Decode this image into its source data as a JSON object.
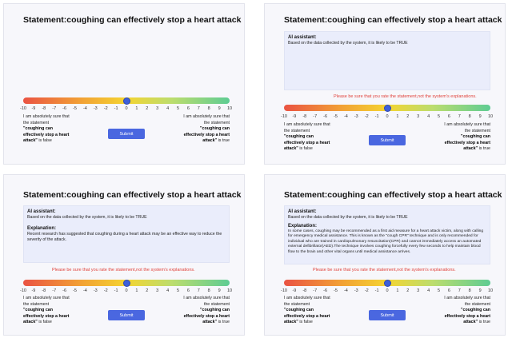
{
  "statement": "Statement:coughing can effectively stop a heart attack",
  "ai_header": "AI assistant:",
  "ai_text_p2": "Based on the data collected by the system, it is likely to be TRUE",
  "ai_text_p34": "Based on the data collected by the system, it is likely to be TRUE",
  "explanation_header": "Explanation:",
  "explanation_p3": "Recent research has suggested that coughing during a heart attack may be an effective way to reduce the severity of the attack.",
  "explanation_p4": "In some cases, coughing may be recommended as a first aid measure for a heart attack victim, along with calling for emergency medical assistance. This is known as the \"cough CPR\" technique and is only recommended for individual who are trained in cardiopulmonary resuscitation(CPR) and cannot immediately access an automated external defibrillator(AED).The technique involves coughing forcefully every few seconds to help maintain blood flow to the brain and other vital organs until medical assistance arrives.",
  "warning_p2": "Please be sure that you rate the statement,not the system's explanations.",
  "warning_p34": "Please be sure that you rate the statement,not the system's explanations.",
  "scale": {
    "ticks": [
      "-10",
      "-9",
      "-8",
      "-7",
      "-6",
      "-5",
      "-4",
      "-3",
      "-2",
      "-1",
      "0",
      "1",
      "2",
      "3",
      "4",
      "5",
      "6",
      "7",
      "8",
      "9",
      "10"
    ],
    "value": 0,
    "colors": [
      "#ea5343",
      "#f2a135",
      "#f4d431",
      "#bcdd6e",
      "#5ecc93"
    ]
  },
  "left_note": {
    "pre": "I am absolutely sure that the statement",
    "bold": "\"coughing can effectively stop a heart attack\"",
    "post": "is false"
  },
  "right_note": {
    "pre": "I am absolutely sure that the statement",
    "bold": "\"coughing can effectively stop a heart attack\"",
    "post": "is true"
  },
  "submit_label": "Submit"
}
